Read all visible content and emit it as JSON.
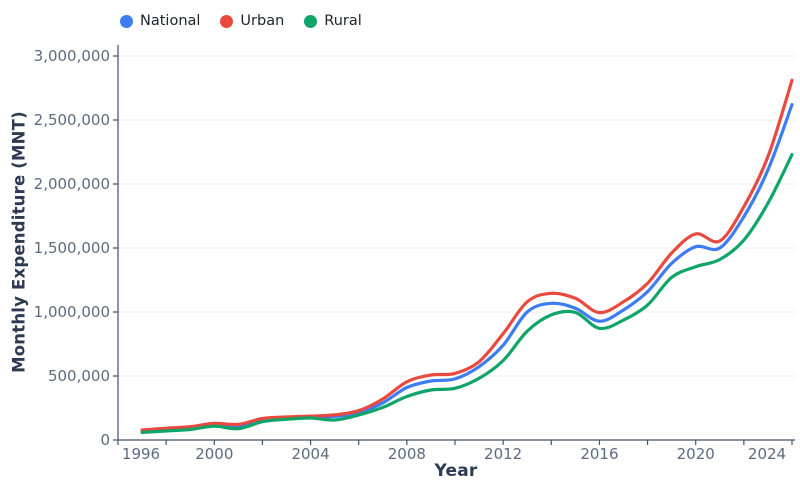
{
  "legend": {
    "items": [
      {
        "label": "National",
        "color": "#3e7cf3"
      },
      {
        "label": "Urban",
        "color": "#e94a3f"
      },
      {
        "label": "Rural",
        "color": "#10a568"
      }
    ]
  },
  "axes": {
    "x_title": "Year",
    "y_title": "Monthly Expenditure (MNT)",
    "y_ticks": [
      {
        "value": 0,
        "label": "0"
      },
      {
        "value": 500000,
        "label": "500,000"
      },
      {
        "value": 1000000,
        "label": "1,000,000"
      },
      {
        "value": 1500000,
        "label": "1,500,000"
      },
      {
        "value": 2000000,
        "label": "2,000,000"
      },
      {
        "value": 2500000,
        "label": "2,500,000"
      },
      {
        "value": 3000000,
        "label": "3,000,000"
      }
    ],
    "x_tick_labels": [
      {
        "year": 1996,
        "label": "1996"
      },
      {
        "year": 2000,
        "label": "2000"
      },
      {
        "year": 2004,
        "label": "2004"
      },
      {
        "year": 2008,
        "label": "2008"
      },
      {
        "year": 2012,
        "label": "2012"
      },
      {
        "year": 2016,
        "label": "2016"
      },
      {
        "year": 2020,
        "label": "2020"
      },
      {
        "year": 2024,
        "label": "2024"
      }
    ]
  },
  "chart_data": {
    "type": "line",
    "title": "",
    "xlabel": "Year",
    "ylabel": "Monthly Expenditure (MNT)",
    "x_axis_range": [
      1996,
      2024
    ],
    "ylim": [
      0,
      3000000
    ],
    "grid": true,
    "legend_position": "top-left",
    "x": [
      1997,
      1998,
      1999,
      2000,
      2001,
      2002,
      2003,
      2004,
      2005,
      2006,
      2007,
      2008,
      2009,
      2010,
      2011,
      2012,
      2013,
      2014,
      2015,
      2016,
      2017,
      2018,
      2019,
      2020,
      2021,
      2022,
      2023,
      2024
    ],
    "series": [
      {
        "name": "National",
        "color": "#3e7cf3",
        "values": [
          68000,
          80000,
          92000,
          117000,
          103000,
          156000,
          172000,
          178000,
          184000,
          213000,
          290000,
          410000,
          461000,
          477000,
          573000,
          740000,
          1000000,
          1068000,
          1029000,
          928000,
          1016000,
          1159000,
          1380000,
          1510000,
          1500000,
          1745000,
          2109000,
          2620000
        ]
      },
      {
        "name": "Urban",
        "color": "#e94a3f",
        "values": [
          78000,
          92000,
          104000,
          130000,
          122000,
          168000,
          180000,
          187000,
          196000,
          229000,
          320000,
          455000,
          508000,
          520000,
          612000,
          830000,
          1080000,
          1146000,
          1107000,
          995000,
          1080000,
          1224000,
          1460000,
          1610000,
          1555000,
          1823000,
          2213000,
          2810000
        ]
      },
      {
        "name": "Rural",
        "color": "#10a568",
        "values": [
          59000,
          70000,
          82000,
          108000,
          88000,
          143000,
          162000,
          172000,
          156000,
          195000,
          255000,
          340000,
          391000,
          404000,
          482000,
          620000,
          850000,
          977000,
          997000,
          872000,
          937000,
          1055000,
          1270000,
          1354000,
          1410000,
          1562000,
          1849000,
          2230000
        ]
      }
    ]
  }
}
